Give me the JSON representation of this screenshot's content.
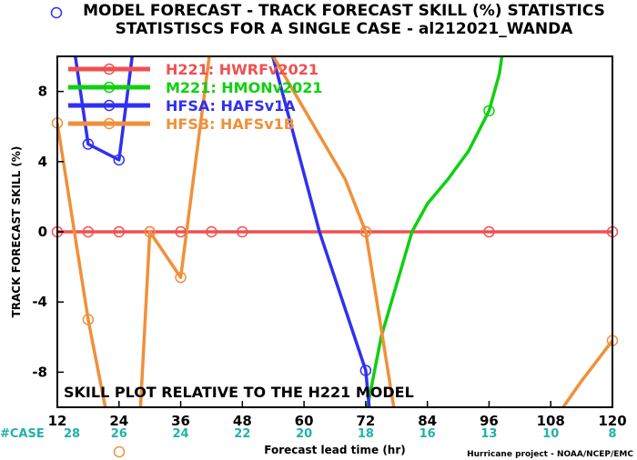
{
  "title_line1": "MODEL FORECAST - TRACK FORECAST SKILL (%) STATISTICS",
  "title_line2": "STATISTISCS FOR A SINGLE CASE - al212021_WANDA",
  "annotation": "SKILL PLOT RELATIVE TO THE H221 MODEL",
  "count_label": "#CASE",
  "credit": "Hurricane project - NOAA/NCEP/EMC",
  "chart_data": {
    "type": "line",
    "xlabel": "Forecast lead time (hr)",
    "ylabel": "TRACK FORECAST SKILL (%)",
    "xlim": [
      12,
      120
    ],
    "ylim": [
      -10,
      10
    ],
    "xticks": [
      12,
      24,
      36,
      48,
      60,
      72,
      84,
      96,
      108,
      120
    ],
    "yticks": [
      -8,
      -4,
      0,
      4,
      8
    ],
    "case_counts": [
      {
        "x": 12,
        "n": "28"
      },
      {
        "x": 24,
        "n": "26"
      },
      {
        "x": 36,
        "n": "24"
      },
      {
        "x": 48,
        "n": "22"
      },
      {
        "x": 60,
        "n": "20"
      },
      {
        "x": 72,
        "n": "18"
      },
      {
        "x": 84,
        "n": "16"
      },
      {
        "x": 96,
        "n": "13"
      },
      {
        "x": 108,
        "n": "10"
      },
      {
        "x": 120,
        "n": "8"
      }
    ],
    "series": [
      {
        "name": "H221: HWRFv2021",
        "color": "#f05050",
        "points": [
          [
            12,
            0
          ],
          [
            18,
            0
          ],
          [
            24,
            0
          ],
          [
            30,
            0
          ],
          [
            36,
            0
          ],
          [
            42,
            0
          ],
          [
            48,
            0
          ],
          [
            72,
            0
          ],
          [
            96,
            0
          ],
          [
            120,
            0
          ]
        ],
        "markers": [
          [
            12,
            0
          ],
          [
            18,
            0
          ],
          [
            24,
            0
          ],
          [
            30,
            0
          ],
          [
            36,
            0
          ],
          [
            42,
            0
          ],
          [
            48,
            0
          ],
          [
            72,
            0
          ],
          [
            96,
            0
          ],
          [
            120,
            0
          ]
        ]
      },
      {
        "name": "M221: HMONv2021",
        "color": "#10d010",
        "points": [
          [
            72,
            -10.5
          ],
          [
            75,
            -6
          ],
          [
            78,
            -3
          ],
          [
            81,
            0
          ],
          [
            84,
            1.6
          ],
          [
            88,
            3
          ],
          [
            92,
            4.6
          ],
          [
            96,
            6.9
          ],
          [
            98,
            9
          ],
          [
            99,
            11
          ]
        ],
        "markers": [
          [
            96,
            6.9
          ]
        ]
      },
      {
        "name": "HFSA: HAFSv1A",
        "color": "#3030f0",
        "points": [
          [
            15,
            11
          ],
          [
            18,
            5
          ],
          [
            24,
            4.1
          ],
          [
            27,
            11
          ],
          [
            53,
            11
          ],
          [
            63,
            0
          ],
          [
            72,
            -7.9
          ],
          [
            73,
            -11
          ]
        ],
        "markers": [
          [
            18,
            5
          ],
          [
            24,
            4.1
          ],
          [
            72,
            -7.9
          ]
        ]
      },
      {
        "name": "HFSB: HAFSv1B",
        "color": "#f0903a",
        "points": [
          [
            12,
            6.2
          ],
          [
            18,
            -5
          ],
          [
            22,
            -11
          ],
          [
            28,
            -11
          ],
          [
            30,
            0
          ],
          [
            36,
            -2.6
          ],
          [
            42,
            11
          ],
          [
            52,
            11
          ],
          [
            60,
            7
          ],
          [
            68,
            3
          ],
          [
            72,
            0
          ],
          [
            78,
            -11
          ],
          [
            102,
            -11
          ],
          [
            108,
            -11
          ],
          [
            114,
            -8.5
          ],
          [
            120,
            -6.2
          ]
        ],
        "markers": [
          [
            12,
            6.2
          ],
          [
            18,
            -5
          ],
          [
            30,
            0
          ],
          [
            36,
            -2.6
          ],
          [
            72,
            0
          ],
          [
            120,
            -6.2
          ]
        ]
      }
    ]
  }
}
